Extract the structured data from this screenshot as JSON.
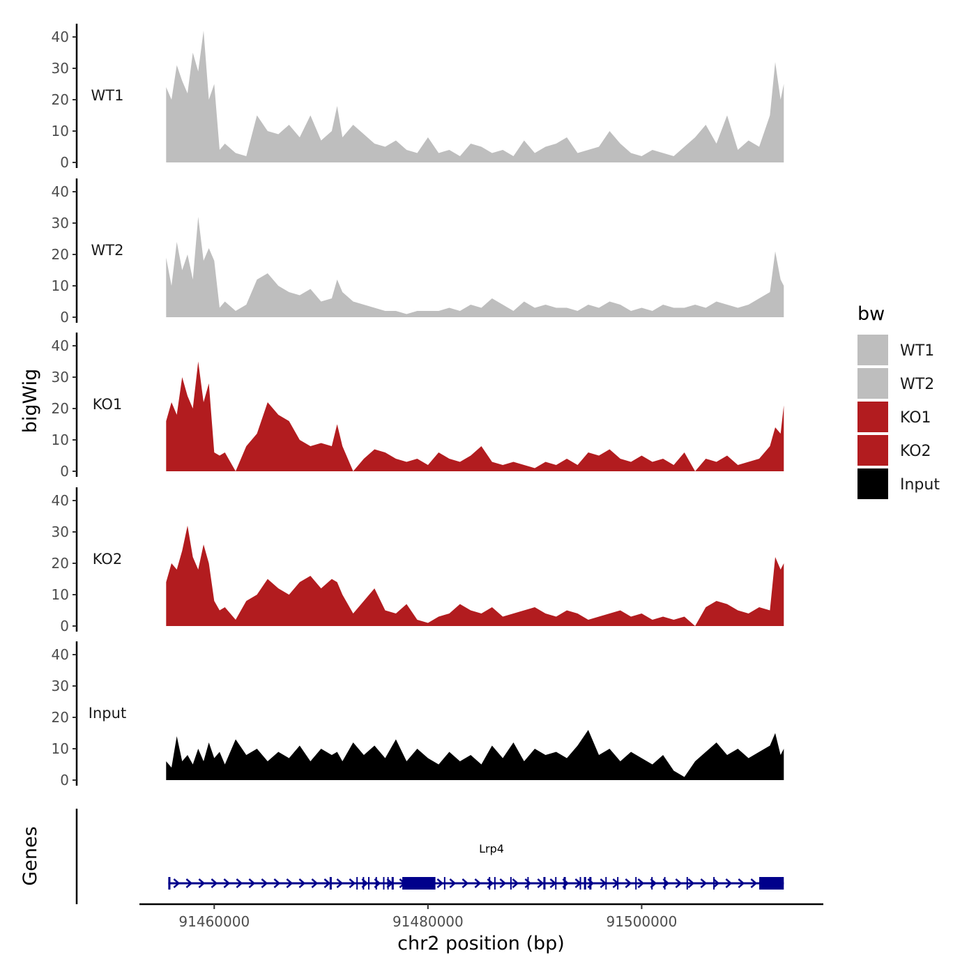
{
  "chart_data": {
    "type": "area",
    "title": "",
    "xlabel": "chr2 position (bp)",
    "ylabel": "bigWig",
    "genes_label": "Genes",
    "xlim": [
      91453000,
      91517000
    ],
    "ylim": [
      0,
      44
    ],
    "x_ticks": [
      91460000,
      91480000,
      91500000
    ],
    "x_tick_labels": [
      "91460000",
      "91480000",
      "91500000"
    ],
    "y_ticks": [
      0,
      10,
      20,
      30,
      40
    ],
    "y_tick_labels": [
      "0",
      "10",
      "20",
      "30",
      "40"
    ],
    "region": [
      91455500,
      91513300
    ],
    "legend": {
      "title": "bw",
      "position": "right",
      "entries": [
        {
          "label": "WT1",
          "color": "#bebebe"
        },
        {
          "label": "WT2",
          "color": "#bebebe"
        },
        {
          "label": "KO1",
          "color": "#b21c1f"
        },
        {
          "label": "KO2",
          "color": "#b21c1f"
        },
        {
          "label": "Input",
          "color": "#000000"
        }
      ]
    },
    "series": [
      {
        "name": "WT1",
        "color": "#bebebe",
        "x": [
          91455500,
          91456000,
          91456500,
          91457000,
          91457500,
          91458000,
          91458500,
          91459000,
          91459500,
          91460000,
          91460500,
          91461000,
          91462000,
          91463000,
          91464000,
          91465000,
          91466000,
          91467000,
          91468000,
          91469000,
          91470000,
          91471000,
          91471500,
          91472000,
          91473000,
          91474000,
          91475000,
          91476000,
          91477000,
          91478000,
          91479000,
          91480000,
          91481000,
          91482000,
          91483000,
          91484000,
          91485000,
          91486000,
          91487000,
          91488000,
          91489000,
          91490000,
          91491000,
          91492000,
          91493000,
          91494000,
          91495000,
          91496000,
          91497000,
          91498000,
          91499000,
          91500000,
          91501000,
          91502000,
          91503000,
          91504000,
          91505000,
          91506000,
          91507000,
          91508000,
          91509000,
          91510000,
          91511000,
          91512000,
          91512500,
          91513000,
          91513300
        ],
        "values": [
          24,
          20,
          31,
          26,
          22,
          35,
          29,
          42,
          20,
          25,
          4,
          6,
          3,
          2,
          15,
          10,
          9,
          12,
          8,
          15,
          7,
          10,
          18,
          8,
          12,
          9,
          6,
          5,
          7,
          4,
          3,
          8,
          3,
          4,
          2,
          6,
          5,
          3,
          4,
          2,
          7,
          3,
          5,
          6,
          8,
          3,
          4,
          5,
          10,
          6,
          3,
          2,
          4,
          3,
          2,
          5,
          8,
          12,
          6,
          15,
          4,
          7,
          5,
          15,
          32,
          20,
          25
        ]
      },
      {
        "name": "WT2",
        "color": "#bebebe",
        "x": [
          91455500,
          91456000,
          91456500,
          91457000,
          91457500,
          91458000,
          91458500,
          91459000,
          91459500,
          91460000,
          91460500,
          91461000,
          91462000,
          91463000,
          91464000,
          91465000,
          91466000,
          91467000,
          91468000,
          91469000,
          91470000,
          91471000,
          91471500,
          91472000,
          91473000,
          91474000,
          91475000,
          91476000,
          91477000,
          91478000,
          91479000,
          91480000,
          91481000,
          91482000,
          91483000,
          91484000,
          91485000,
          91486000,
          91487000,
          91488000,
          91489000,
          91490000,
          91491000,
          91492000,
          91493000,
          91494000,
          91495000,
          91496000,
          91497000,
          91498000,
          91499000,
          91500000,
          91501000,
          91502000,
          91503000,
          91504000,
          91505000,
          91506000,
          91507000,
          91508000,
          91509000,
          91510000,
          91511000,
          91512000,
          91512500,
          91513000,
          91513300
        ],
        "values": [
          19,
          10,
          24,
          15,
          20,
          12,
          32,
          18,
          22,
          18,
          3,
          5,
          2,
          4,
          12,
          14,
          10,
          8,
          7,
          9,
          5,
          6,
          12,
          8,
          5,
          4,
          3,
          2,
          2,
          1,
          2,
          2,
          2,
          3,
          2,
          4,
          3,
          6,
          4,
          2,
          5,
          3,
          4,
          3,
          3,
          2,
          4,
          3,
          5,
          4,
          2,
          3,
          2,
          4,
          3,
          3,
          4,
          3,
          5,
          4,
          3,
          4,
          6,
          8,
          21,
          12,
          10
        ]
      },
      {
        "name": "KO1",
        "color": "#b21c1f",
        "x": [
          91455500,
          91456000,
          91456500,
          91457000,
          91457500,
          91458000,
          91458500,
          91459000,
          91459500,
          91460000,
          91460500,
          91461000,
          91462000,
          91463000,
          91464000,
          91465000,
          91466000,
          91467000,
          91468000,
          91469000,
          91470000,
          91471000,
          91471500,
          91472000,
          91473000,
          91474000,
          91475000,
          91476000,
          91477000,
          91478000,
          91479000,
          91480000,
          91481000,
          91482000,
          91483000,
          91484000,
          91485000,
          91486000,
          91487000,
          91488000,
          91489000,
          91490000,
          91491000,
          91492000,
          91493000,
          91494000,
          91495000,
          91496000,
          91497000,
          91498000,
          91499000,
          91500000,
          91501000,
          91502000,
          91503000,
          91504000,
          91505000,
          91506000,
          91507000,
          91508000,
          91509000,
          91510000,
          91511000,
          91512000,
          91512500,
          91513000,
          91513300
        ],
        "values": [
          16,
          22,
          18,
          30,
          24,
          20,
          35,
          22,
          28,
          6,
          5,
          6,
          0,
          8,
          12,
          22,
          18,
          16,
          10,
          8,
          9,
          8,
          15,
          8,
          0,
          4,
          7,
          6,
          4,
          3,
          4,
          2,
          6,
          4,
          3,
          5,
          8,
          3,
          2,
          3,
          2,
          1,
          3,
          2,
          4,
          2,
          6,
          5,
          7,
          4,
          3,
          5,
          3,
          4,
          2,
          6,
          0,
          4,
          3,
          5,
          2,
          3,
          4,
          8,
          14,
          12,
          21
        ]
      },
      {
        "name": "KO2",
        "color": "#b21c1f",
        "x": [
          91455500,
          91456000,
          91456500,
          91457000,
          91457500,
          91458000,
          91458500,
          91459000,
          91459500,
          91460000,
          91460500,
          91461000,
          91462000,
          91463000,
          91464000,
          91465000,
          91466000,
          91467000,
          91468000,
          91469000,
          91470000,
          91471000,
          91471500,
          91472000,
          91473000,
          91474000,
          91475000,
          91476000,
          91477000,
          91478000,
          91479000,
          91480000,
          91481000,
          91482000,
          91483000,
          91484000,
          91485000,
          91486000,
          91487000,
          91488000,
          91489000,
          91490000,
          91491000,
          91492000,
          91493000,
          91494000,
          91495000,
          91496000,
          91497000,
          91498000,
          91499000,
          91500000,
          91501000,
          91502000,
          91503000,
          91504000,
          91505000,
          91506000,
          91507000,
          91508000,
          91509000,
          91510000,
          91511000,
          91512000,
          91512500,
          91513000,
          91513300
        ],
        "values": [
          14,
          20,
          18,
          24,
          32,
          22,
          18,
          26,
          20,
          8,
          5,
          6,
          2,
          8,
          10,
          15,
          12,
          10,
          14,
          16,
          12,
          15,
          14,
          10,
          4,
          8,
          12,
          5,
          4,
          7,
          2,
          1,
          3,
          4,
          7,
          5,
          4,
          6,
          3,
          4,
          5,
          6,
          4,
          3,
          5,
          4,
          2,
          3,
          4,
          5,
          3,
          4,
          2,
          3,
          2,
          3,
          0,
          6,
          8,
          7,
          5,
          4,
          6,
          5,
          22,
          18,
          20
        ]
      },
      {
        "name": "Input",
        "color": "#000000",
        "x": [
          91455500,
          91456000,
          91456500,
          91457000,
          91457500,
          91458000,
          91458500,
          91459000,
          91459500,
          91460000,
          91460500,
          91461000,
          91462000,
          91463000,
          91464000,
          91465000,
          91466000,
          91467000,
          91468000,
          91469000,
          91470000,
          91471000,
          91471500,
          91472000,
          91473000,
          91474000,
          91475000,
          91476000,
          91477000,
          91478000,
          91479000,
          91480000,
          91481000,
          91482000,
          91483000,
          91484000,
          91485000,
          91486000,
          91487000,
          91488000,
          91489000,
          91490000,
          91491000,
          91492000,
          91493000,
          91494000,
          91495000,
          91496000,
          91497000,
          91498000,
          91499000,
          91500000,
          91501000,
          91502000,
          91503000,
          91504000,
          91505000,
          91506000,
          91507000,
          91508000,
          91509000,
          91510000,
          91511000,
          91512000,
          91512500,
          91513000,
          91513300
        ],
        "values": [
          6,
          4,
          14,
          6,
          8,
          5,
          10,
          6,
          12,
          7,
          9,
          5,
          13,
          8,
          10,
          6,
          9,
          7,
          11,
          6,
          10,
          8,
          9,
          6,
          12,
          8,
          11,
          7,
          13,
          6,
          10,
          7,
          5,
          9,
          6,
          8,
          5,
          11,
          7,
          12,
          6,
          10,
          8,
          9,
          7,
          11,
          16,
          8,
          10,
          6,
          9,
          7,
          5,
          8,
          3,
          1,
          6,
          9,
          12,
          8,
          10,
          7,
          9,
          11,
          15,
          8,
          10
        ]
      }
    ],
    "gene_track": {
      "name": "Lrp4",
      "strand": "+",
      "color": "#00008b",
      "start": 91455700,
      "end": 91513300,
      "exons": [
        [
          91455700,
          91455900
        ],
        [
          91470800,
          91471000
        ],
        [
          91473300,
          91473400
        ],
        [
          91473900,
          91474000
        ],
        [
          91474400,
          91474500
        ],
        [
          91475100,
          91475200
        ],
        [
          91475800,
          91475900
        ],
        [
          91476200,
          91476300
        ],
        [
          91476600,
          91476800
        ],
        [
          91477600,
          91480700
        ],
        [
          91481500,
          91481600
        ],
        [
          91485700,
          91485800
        ],
        [
          91486200,
          91486300
        ],
        [
          91487700,
          91487800
        ],
        [
          91489300,
          91489400
        ],
        [
          91490800,
          91491000
        ],
        [
          91491900,
          91492000
        ],
        [
          91492700,
          91492900
        ],
        [
          91494200,
          91494300
        ],
        [
          91494600,
          91494800
        ],
        [
          91495100,
          91495300
        ],
        [
          91496600,
          91496700
        ],
        [
          91497700,
          91497800
        ],
        [
          91499400,
          91499500
        ],
        [
          91500900,
          91501000
        ],
        [
          91502100,
          91502200
        ],
        [
          91504200,
          91504300
        ],
        [
          91506700,
          91506800
        ],
        [
          91511000,
          91513300
        ]
      ]
    }
  }
}
